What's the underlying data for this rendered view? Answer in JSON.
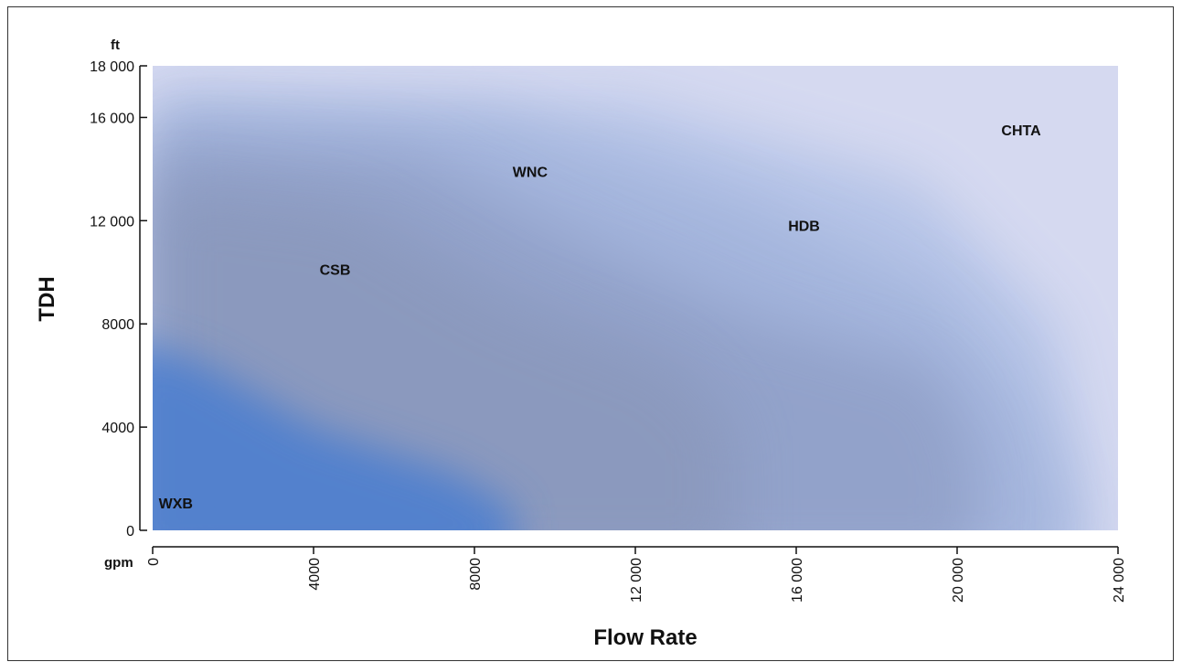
{
  "chart_data": {
    "type": "area",
    "title": "",
    "xlabel": "Flow Rate",
    "ylabel": "TDH",
    "x_unit": "gpm",
    "y_unit": "ft",
    "xlim": [
      0,
      24000
    ],
    "ylim": [
      0,
      18000
    ],
    "x_ticks": [
      0,
      4000,
      8000,
      12000,
      16000,
      20000,
      24000
    ],
    "x_tick_labels": [
      "0",
      "4000",
      "8000",
      "12 000",
      "16 000",
      "20 000",
      "24 000"
    ],
    "y_ticks": [
      0,
      4000,
      8000,
      12000,
      16000,
      18000
    ],
    "y_tick_labels": [
      "0",
      "4000",
      "8000",
      "12 000",
      "16 000",
      "18 000"
    ],
    "grid": false,
    "legend": "none",
    "regions": [
      {
        "name": "CHTA",
        "label_x": 21100,
        "label_y": 15300
      },
      {
        "name": "HDB",
        "label_x": 15800,
        "label_y": 11600
      },
      {
        "name": "WNC",
        "label_x": 8950,
        "label_y": 13700
      },
      {
        "name": "CSB",
        "label_x": 4150,
        "label_y": 9900
      },
      {
        "name": "WXB",
        "label_x": 150,
        "label_y": 850
      }
    ],
    "colors": {
      "background": "#d5d9f0",
      "chta": "#b3c2e6",
      "hdb": "#a3b4dc",
      "wnc": "#8d9cc4",
      "csb": "#8a98bc",
      "wxb": "#4e7fcf"
    }
  }
}
